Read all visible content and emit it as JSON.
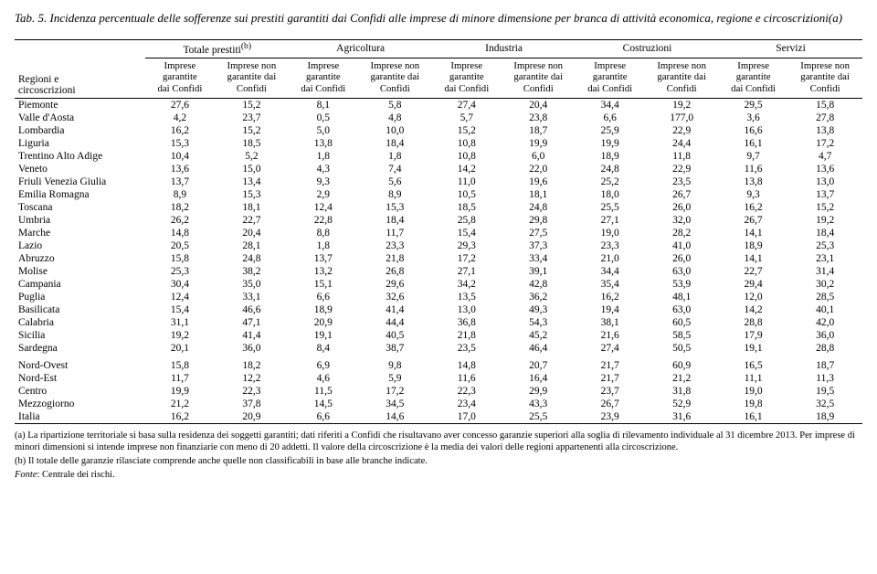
{
  "caption_prefix": "Tab. 5.",
  "caption_rest": " Incidenza percentuale delle sofferenze sui prestiti garantiti dai Confidi alle imprese di minore dimensione per branca di attività economica, regione e circoscrizioni",
  "caption_sup": "(a)",
  "region_header_l1": "Regioni e",
  "region_header_l2": "circoscrizioni",
  "groups": [
    {
      "label": "Totale prestiti",
      "sup": "(b)"
    },
    {
      "label": "Agricoltura",
      "sup": ""
    },
    {
      "label": "Industria",
      "sup": ""
    },
    {
      "label": "Costruzioni",
      "sup": ""
    },
    {
      "label": "Servizi",
      "sup": ""
    }
  ],
  "sub_g_l1": "Imprese",
  "sub_g_l2": "garantite",
  "sub_g_l3": "dai Confidi",
  "sub_ng_l1": "Imprese non",
  "sub_ng_l2": "garantite dai",
  "sub_ng_l3": "Confidi",
  "rows": [
    {
      "label": "Piemonte",
      "v": [
        "27,6",
        "15,2",
        "8,1",
        "5,8",
        "27,4",
        "20,4",
        "34,4",
        "19,2",
        "29,5",
        "15,8"
      ]
    },
    {
      "label": "Valle d'Aosta",
      "v": [
        "4,2",
        "23,7",
        "0,5",
        "4,8",
        "5,7",
        "23,8",
        "6,6",
        "177,0",
        "3,6",
        "27,8"
      ]
    },
    {
      "label": "Lombardia",
      "v": [
        "16,2",
        "15,2",
        "5,0",
        "10,0",
        "15,2",
        "18,7",
        "25,9",
        "22,9",
        "16,6",
        "13,8"
      ]
    },
    {
      "label": "Liguria",
      "v": [
        "15,3",
        "18,5",
        "13,8",
        "18,4",
        "10,8",
        "19,9",
        "19,9",
        "24,4",
        "16,1",
        "17,2"
      ]
    },
    {
      "label": "Trentino Alto Adige",
      "v": [
        "10,4",
        "5,2",
        "1,8",
        "1,8",
        "10,8",
        "6,0",
        "18,9",
        "11,8",
        "9,7",
        "4,7"
      ]
    },
    {
      "label": "Veneto",
      "v": [
        "13,6",
        "15,0",
        "4,3",
        "7,4",
        "14,2",
        "22,0",
        "24,8",
        "22,9",
        "11,6",
        "13,6"
      ]
    },
    {
      "label": "Friuli Venezia Giulia",
      "v": [
        "13,7",
        "13,4",
        "9,3",
        "5,6",
        "11,0",
        "19,6",
        "25,2",
        "23,5",
        "13,8",
        "13,0"
      ]
    },
    {
      "label": "Emilia Romagna",
      "v": [
        "8,9",
        "15,3",
        "2,9",
        "8,9",
        "10,5",
        "18,1",
        "18,0",
        "26,7",
        "9,3",
        "13,7"
      ]
    },
    {
      "label": "Toscana",
      "v": [
        "18,2",
        "18,1",
        "12,4",
        "15,3",
        "18,5",
        "24,8",
        "25,5",
        "26,0",
        "16,2",
        "15,2"
      ]
    },
    {
      "label": "Umbria",
      "v": [
        "26,2",
        "22,7",
        "22,8",
        "18,4",
        "25,8",
        "29,8",
        "27,1",
        "32,0",
        "26,7",
        "19,2"
      ]
    },
    {
      "label": "Marche",
      "v": [
        "14,8",
        "20,4",
        "8,8",
        "11,7",
        "15,4",
        "27,5",
        "19,0",
        "28,2",
        "14,1",
        "18,4"
      ]
    },
    {
      "label": "Lazio",
      "v": [
        "20,5",
        "28,1",
        "1,8",
        "23,3",
        "29,3",
        "37,3",
        "23,3",
        "41,0",
        "18,9",
        "25,3"
      ]
    },
    {
      "label": "Abruzzo",
      "v": [
        "15,8",
        "24,8",
        "13,7",
        "21,8",
        "17,2",
        "33,4",
        "21,0",
        "26,0",
        "14,1",
        "23,1"
      ]
    },
    {
      "label": "Molise",
      "v": [
        "25,3",
        "38,2",
        "13,2",
        "26,8",
        "27,1",
        "39,1",
        "34,4",
        "63,0",
        "22,7",
        "31,4"
      ]
    },
    {
      "label": "Campania",
      "v": [
        "30,4",
        "35,0",
        "15,1",
        "29,6",
        "34,2",
        "42,8",
        "35,4",
        "53,9",
        "29,4",
        "30,2"
      ]
    },
    {
      "label": "Puglia",
      "v": [
        "12,4",
        "33,1",
        "6,6",
        "32,6",
        "13,5",
        "36,2",
        "16,2",
        "48,1",
        "12,0",
        "28,5"
      ]
    },
    {
      "label": "Basilicata",
      "v": [
        "15,4",
        "46,6",
        "18,9",
        "41,4",
        "13,0",
        "49,3",
        "19,4",
        "63,0",
        "14,2",
        "40,1"
      ]
    },
    {
      "label": "Calabria",
      "v": [
        "31,1",
        "47,1",
        "20,9",
        "44,4",
        "36,8",
        "54,3",
        "38,1",
        "60,5",
        "28,8",
        "42,0"
      ]
    },
    {
      "label": "Sicilia",
      "v": [
        "19,2",
        "41,4",
        "19,1",
        "40,5",
        "21,8",
        "45,2",
        "21,6",
        "58,5",
        "17,9",
        "36,0"
      ]
    },
    {
      "label": "Sardegna",
      "v": [
        "20,1",
        "36,0",
        "8,4",
        "38,7",
        "23,5",
        "46,4",
        "27,4",
        "50,5",
        "19,1",
        "28,8"
      ]
    }
  ],
  "rows2": [
    {
      "label": "Nord-Ovest",
      "v": [
        "15,8",
        "18,2",
        "6,9",
        "9,8",
        "14,8",
        "20,7",
        "21,7",
        "60,9",
        "16,5",
        "18,7"
      ]
    },
    {
      "label": "Nord-Est",
      "v": [
        "11,7",
        "12,2",
        "4,6",
        "5,9",
        "11,6",
        "16,4",
        "21,7",
        "21,2",
        "11,1",
        "11,3"
      ]
    },
    {
      "label": "Centro",
      "v": [
        "19,9",
        "22,3",
        "11,5",
        "17,2",
        "22,3",
        "29,9",
        "23,7",
        "31,8",
        "19,0",
        "19,5"
      ]
    },
    {
      "label": "Mezzogiorno",
      "v": [
        "21,2",
        "37,8",
        "14,5",
        "34,5",
        "23,4",
        "43,3",
        "26,7",
        "52,9",
        "19,8",
        "32,5"
      ]
    },
    {
      "label": "Italia",
      "v": [
        "16,2",
        "20,9",
        "6,6",
        "14,6",
        "17,0",
        "25,5",
        "23,9",
        "31,6",
        "16,1",
        "18,9"
      ]
    }
  ],
  "footnote_a": "(a) La ripartizione territoriale si basa sulla residenza dei soggetti garantiti; dati riferiti a Confidi che risultavano aver concesso garanzie superiori alla soglia di rilevamento individuale al 31 dicembre 2013. Per imprese di minori dimensioni si intende imprese non finanziarie con meno di 20 addetti. Il valore della circoscrizione è la media dei valori delle regioni appartenenti alla circoscrizione.",
  "footnote_b": "(b) Il totale delle garanzie rilasciate comprende anche quelle non classificabili in base alle branche indicate.",
  "source_label": "Fonte",
  "source_text": ": Centrale dei rischi."
}
